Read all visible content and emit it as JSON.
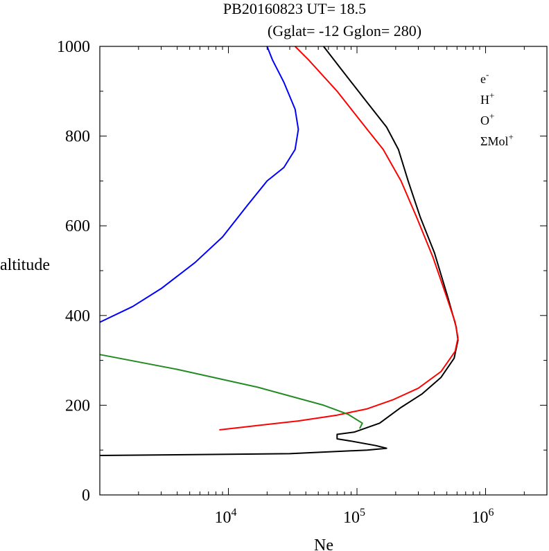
{
  "chart_data": {
    "type": "line",
    "title_line1": "PB20160823   UT=  18.5",
    "title_line2": "(Gglat= -12   Gglon=  280)",
    "xlabel": "Ne",
    "ylabel": "altitude",
    "x_scale": "log",
    "xlim": [
      1000,
      3000000
    ],
    "ylim": [
      0,
      1000
    ],
    "x_tick_labels": [
      {
        "base": "10",
        "exp": "4",
        "value": 10000
      },
      {
        "base": "10",
        "exp": "5",
        "value": 100000
      },
      {
        "base": "10",
        "exp": "6",
        "value": 1000000
      }
    ],
    "y_ticks": [
      0,
      200,
      400,
      600,
      800,
      1000
    ],
    "legend_position": "top-right",
    "series": [
      {
        "name": "e-",
        "label_base": "e",
        "label_sup": "-",
        "color": "#000000",
        "points": [
          [
            1000,
            88
          ],
          [
            30000,
            92
          ],
          [
            120000,
            100
          ],
          [
            170000,
            104
          ],
          [
            140000,
            110
          ],
          [
            90000,
            120
          ],
          [
            70000,
            125
          ],
          [
            70000,
            135
          ],
          [
            95000,
            140
          ],
          [
            150000,
            160
          ],
          [
            220000,
            195
          ],
          [
            320000,
            225
          ],
          [
            450000,
            262
          ],
          [
            570000,
            305
          ],
          [
            610000,
            345
          ],
          [
            590000,
            375
          ],
          [
            510000,
            440
          ],
          [
            400000,
            540
          ],
          [
            310000,
            620
          ],
          [
            250000,
            700
          ],
          [
            210000,
            770
          ],
          [
            170000,
            820
          ],
          [
            120000,
            875
          ],
          [
            75000,
            950
          ],
          [
            55000,
            1000
          ]
        ]
      },
      {
        "name": "H+",
        "label_base": "H",
        "label_sup": "+",
        "color": "#0000ff",
        "points": [
          [
            1000,
            385
          ],
          [
            1800,
            420
          ],
          [
            3000,
            460
          ],
          [
            5500,
            518
          ],
          [
            9000,
            575
          ],
          [
            14000,
            645
          ],
          [
            20000,
            700
          ],
          [
            27000,
            730
          ],
          [
            33000,
            770
          ],
          [
            35000,
            815
          ],
          [
            33000,
            860
          ],
          [
            27000,
            920
          ],
          [
            22000,
            970
          ],
          [
            20000,
            1000
          ]
        ]
      },
      {
        "name": "O+",
        "label_base": "O",
        "label_sup": "+",
        "color": "#ff0000",
        "points": [
          [
            8500,
            145
          ],
          [
            17000,
            155
          ],
          [
            35000,
            165
          ],
          [
            70000,
            178
          ],
          [
            120000,
            192
          ],
          [
            190000,
            212
          ],
          [
            300000,
            238
          ],
          [
            450000,
            275
          ],
          [
            580000,
            320
          ],
          [
            610000,
            350
          ],
          [
            580000,
            385
          ],
          [
            500000,
            440
          ],
          [
            390000,
            530
          ],
          [
            290000,
            620
          ],
          [
            220000,
            700
          ],
          [
            160000,
            770
          ],
          [
            120000,
            815
          ],
          [
            70000,
            900
          ],
          [
            42000,
            970
          ],
          [
            33000,
            1000
          ]
        ]
      },
      {
        "name": "ΣMol+",
        "label_base": "ΣMol",
        "label_sup": "+",
        "color": "#228b22",
        "points": [
          [
            1000,
            313
          ],
          [
            4000,
            280
          ],
          [
            17000,
            240
          ],
          [
            55000,
            200
          ],
          [
            85000,
            180
          ],
          [
            110000,
            160
          ],
          [
            105000,
            148
          ]
        ]
      }
    ]
  }
}
